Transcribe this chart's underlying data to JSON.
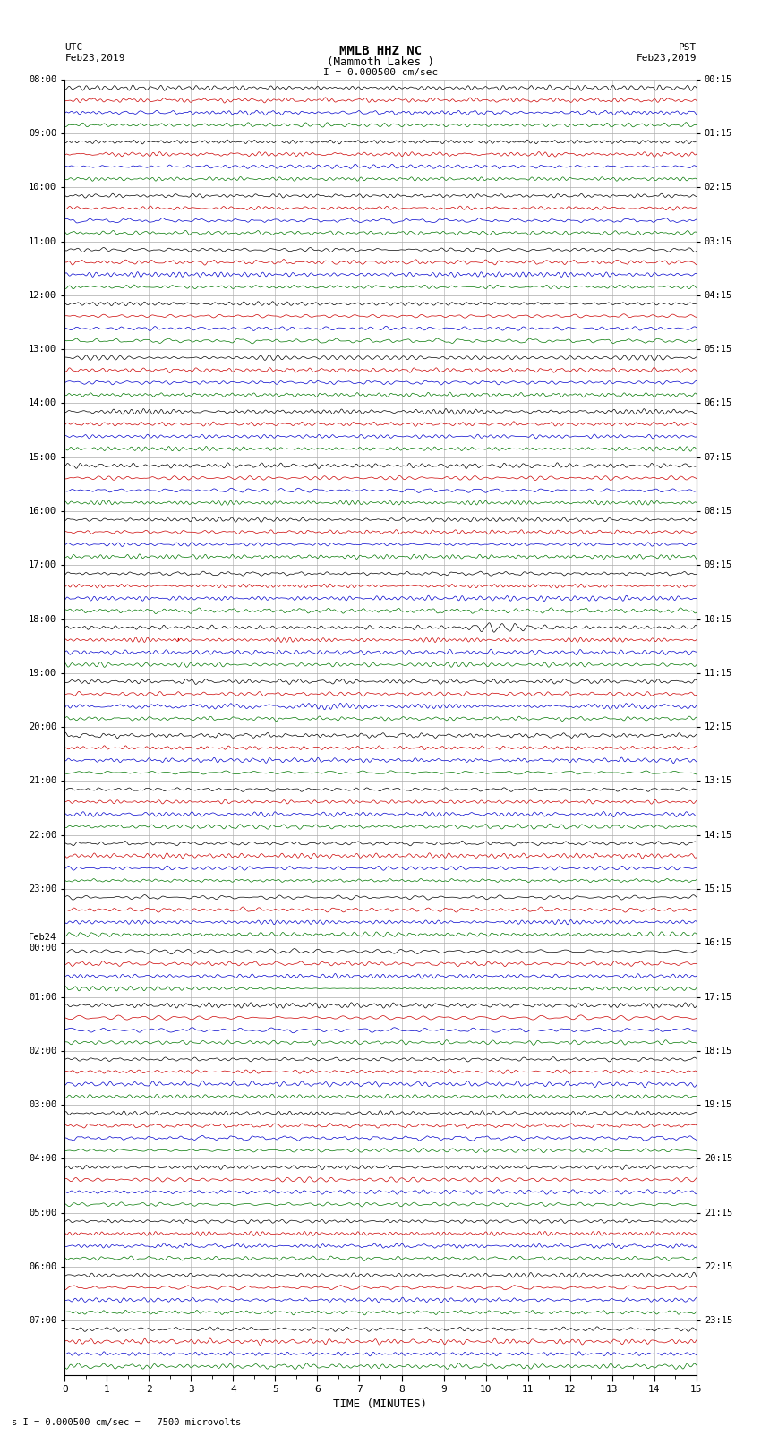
{
  "title_line1": "MMLB HHZ NC",
  "title_line2": "(Mammoth Lakes )",
  "title_line3": "I = 0.000500 cm/sec",
  "left_header": "UTC",
  "left_date": "Feb23,2019",
  "right_header": "PST",
  "right_date": "Feb23,2019",
  "xlabel": "TIME (MINUTES)",
  "footer": "s I = 0.000500 cm/sec =   7500 microvolts",
  "xmin": 0,
  "xmax": 15,
  "background": "#ffffff",
  "trace_colors": [
    "#000000",
    "#cc0000",
    "#0000cc",
    "#007700"
  ],
  "utc_labels": [
    "08:00",
    "09:00",
    "10:00",
    "11:00",
    "12:00",
    "13:00",
    "14:00",
    "15:00",
    "16:00",
    "17:00",
    "18:00",
    "19:00",
    "20:00",
    "21:00",
    "22:00",
    "23:00",
    "Feb24\n00:00",
    "01:00",
    "02:00",
    "03:00",
    "04:00",
    "05:00",
    "06:00",
    "07:00"
  ],
  "pst_labels": [
    "00:15",
    "01:15",
    "02:15",
    "03:15",
    "04:15",
    "05:15",
    "06:15",
    "07:15",
    "08:15",
    "09:15",
    "10:15",
    "11:15",
    "12:15",
    "13:15",
    "14:15",
    "15:15",
    "16:15",
    "17:15",
    "18:15",
    "19:15",
    "20:15",
    "21:15",
    "22:15",
    "23:15"
  ],
  "num_rows": 24,
  "traces_per_row": 4,
  "noise_scale": 0.03,
  "spike_row": 10,
  "spike_minute": 2.7,
  "spike_trace": 1,
  "spike_amplitude": 0.25,
  "earthquake_row": 10,
  "earthquake_minute": 9.3,
  "earthquake_trace": 0,
  "fig_width": 8.5,
  "fig_height": 16.13,
  "grid_color": "#aaaaaa",
  "grid_linewidth": 0.4
}
